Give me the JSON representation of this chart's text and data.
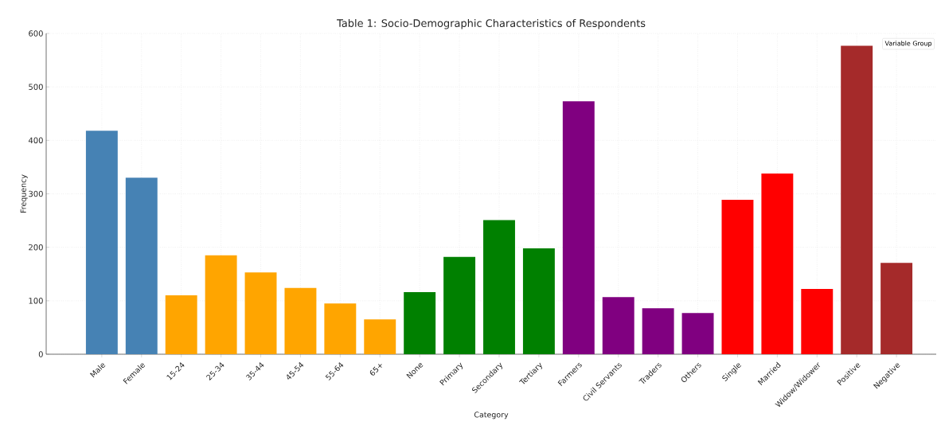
{
  "chart_data": {
    "type": "bar",
    "title": "Table 1: Socio-Demographic Characteristics of Respondents",
    "xlabel": "Category",
    "ylabel": "Frequency",
    "legend_title": "Variable Group",
    "categories": [
      "Male",
      "Female",
      "15-24",
      "25-34",
      "35-44",
      "45-54",
      "55-64",
      "65+",
      "None",
      "Primary",
      "Secondary",
      "Tertiary",
      "Farmers",
      "Civil Servants",
      "Traders",
      "Others",
      "Single",
      "Married",
      "Widow/Widower",
      "Positive",
      "Negative"
    ],
    "values": [
      418,
      330,
      110,
      185,
      153,
      124,
      95,
      65,
      116,
      182,
      251,
      198,
      473,
      107,
      86,
      77,
      289,
      338,
      122,
      577,
      171
    ],
    "colors": [
      "#4682b4",
      "#4682b4",
      "#ffa500",
      "#ffa500",
      "#ffa500",
      "#ffa500",
      "#ffa500",
      "#ffa500",
      "#008000",
      "#008000",
      "#008000",
      "#008000",
      "#800080",
      "#800080",
      "#800080",
      "#800080",
      "#ff0000",
      "#ff0000",
      "#ff0000",
      "#a52a2a",
      "#a52a2a"
    ],
    "ylim": [
      0,
      600
    ],
    "yticks": [
      0,
      100,
      200,
      300,
      400,
      500,
      600
    ],
    "grid": true
  }
}
